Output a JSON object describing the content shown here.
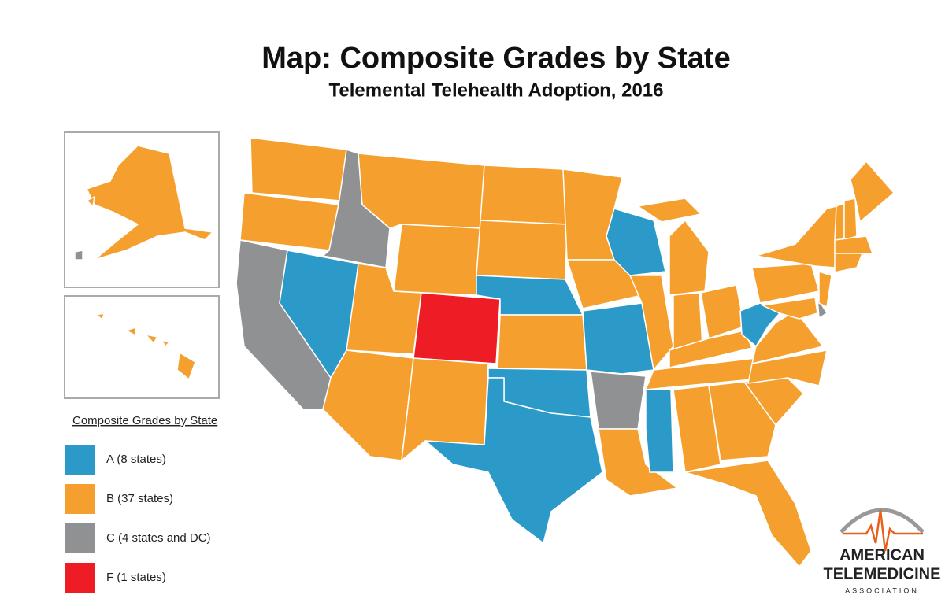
{
  "header": {
    "title": "Map: Composite Grades by State",
    "subtitle": "Telemental Telehealth Adoption, 2016"
  },
  "legend": {
    "title": "Composite Grades by State",
    "items": [
      {
        "label": "A (8 states)",
        "color": "#2b9ac8"
      },
      {
        "label": "B (37 states)",
        "color": "#f5a02e"
      },
      {
        "label": "C (4 states and DC)",
        "color": "#8f9193"
      },
      {
        "label": "F (1 states)",
        "color": "#ee1c25"
      }
    ]
  },
  "logo": {
    "line1": "AMERICAN",
    "line2": "TELEMEDICINE",
    "line3": "ASSOCIATION"
  }
}
